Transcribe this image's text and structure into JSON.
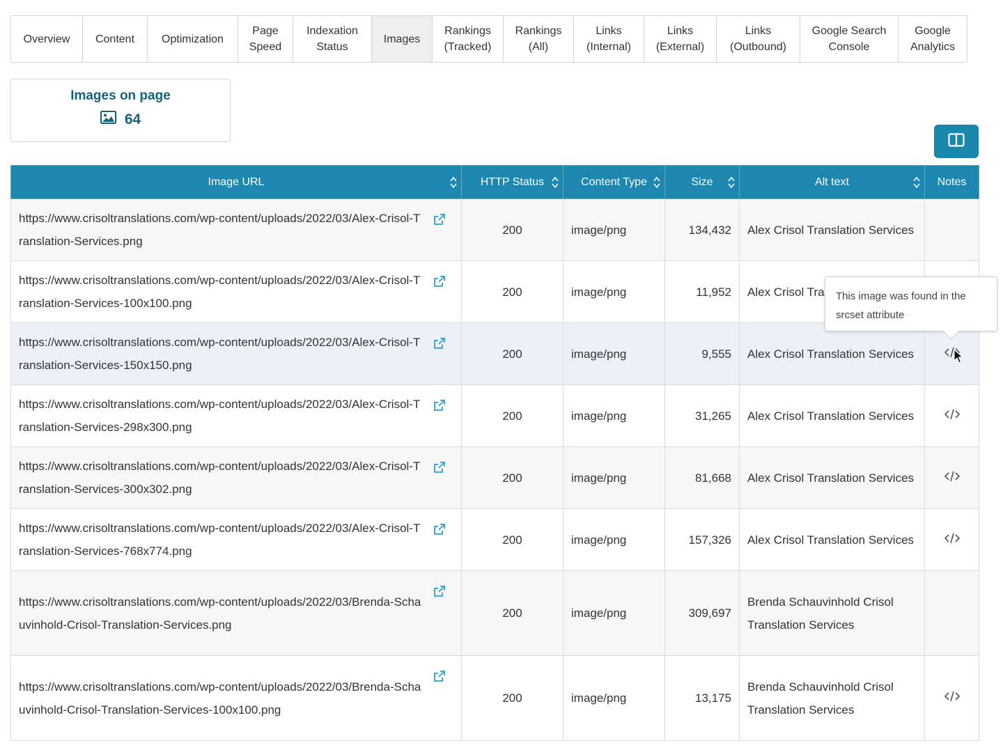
{
  "tabs": [
    {
      "label": "Overview",
      "active": false
    },
    {
      "label": "Content",
      "active": false
    },
    {
      "label": "Optimization",
      "active": false
    },
    {
      "label": "Page\nSpeed",
      "active": false
    },
    {
      "label": "Indexation\nStatus",
      "active": false
    },
    {
      "label": "Images",
      "active": true
    },
    {
      "label": "Rankings\n(Tracked)",
      "active": false
    },
    {
      "label": "Rankings\n(All)",
      "active": false
    },
    {
      "label": "Links\n(Internal)",
      "active": false
    },
    {
      "label": "Links\n(External)",
      "active": false
    },
    {
      "label": "Links\n(Outbound)",
      "active": false
    },
    {
      "label": "Google Search\nConsole",
      "active": false
    },
    {
      "label": "Google\nAnalytics",
      "active": false
    }
  ],
  "summary": {
    "title": "Images on page",
    "count": "64",
    "icon": "image-icon"
  },
  "toolbar": {
    "column_toggle_icon": "columns-icon"
  },
  "table": {
    "headers": [
      {
        "label": "Image URL",
        "sortable": true
      },
      {
        "label": "HTTP Status",
        "sortable": true
      },
      {
        "label": "Content Type",
        "sortable": true
      },
      {
        "label": "Size",
        "sortable": true
      },
      {
        "label": "Alt text",
        "sortable": true
      },
      {
        "label": "Notes",
        "sortable": false
      }
    ],
    "rows": [
      {
        "url": "https://www.crisoltranslations.com/wp-content/uploads/2022/03/Alex-Crisol-Translation-Services.png",
        "status": "200",
        "type": "image/png",
        "size": "134,432",
        "alt": "Alex Crisol Translation Services",
        "note": false
      },
      {
        "url": "https://www.crisoltranslations.com/wp-content/uploads/2022/03/Alex-Crisol-Translation-Services-100x100.png",
        "status": "200",
        "type": "image/png",
        "size": "11,952",
        "alt": "Alex Crisol Translation Services",
        "note": true
      },
      {
        "url": "https://www.crisoltranslations.com/wp-content/uploads/2022/03/Alex-Crisol-Translation-Services-150x150.png",
        "status": "200",
        "type": "image/png",
        "size": "9,555",
        "alt": "Alex Crisol Translation Services",
        "note": true
      },
      {
        "url": "https://www.crisoltranslations.com/wp-content/uploads/2022/03/Alex-Crisol-Translation-Services-298x300.png",
        "status": "200",
        "type": "image/png",
        "size": "31,265",
        "alt": "Alex Crisol Translation Services",
        "note": true
      },
      {
        "url": "https://www.crisoltranslations.com/wp-content/uploads/2022/03/Alex-Crisol-Translation-Services-300x302.png",
        "status": "200",
        "type": "image/png",
        "size": "81,668",
        "alt": "Alex Crisol Translation Services",
        "note": true
      },
      {
        "url": "https://www.crisoltranslations.com/wp-content/uploads/2022/03/Alex-Crisol-Translation-Services-768x774.png",
        "status": "200",
        "type": "image/png",
        "size": "157,326",
        "alt": "Alex Crisol Translation Services",
        "note": true
      },
      {
        "url": "https://www.crisoltranslations.com/wp-content/uploads/2022/03/Brenda-Schauvinhold-Crisol-Translation-Services.png",
        "status": "200",
        "type": "image/png",
        "size": "309,697",
        "alt": "Brenda Schauvinhold Crisol Translation Services",
        "note": false
      },
      {
        "url": "https://www.crisoltranslations.com/wp-content/uploads/2022/03/Brenda-Schauvinhold-Crisol-Translation-Services-100x100.png",
        "status": "200",
        "type": "image/png",
        "size": "13,175",
        "alt": "Brenda Schauvinhold Crisol Translation Services",
        "note": true
      }
    ]
  },
  "tooltip": {
    "text": "This image was found in the srcset attribute"
  },
  "colors": {
    "header_bg": "#1e87b0",
    "accent": "#16627d",
    "button_bg": "#1a87ad",
    "link_icon": "#2a9fd6"
  }
}
